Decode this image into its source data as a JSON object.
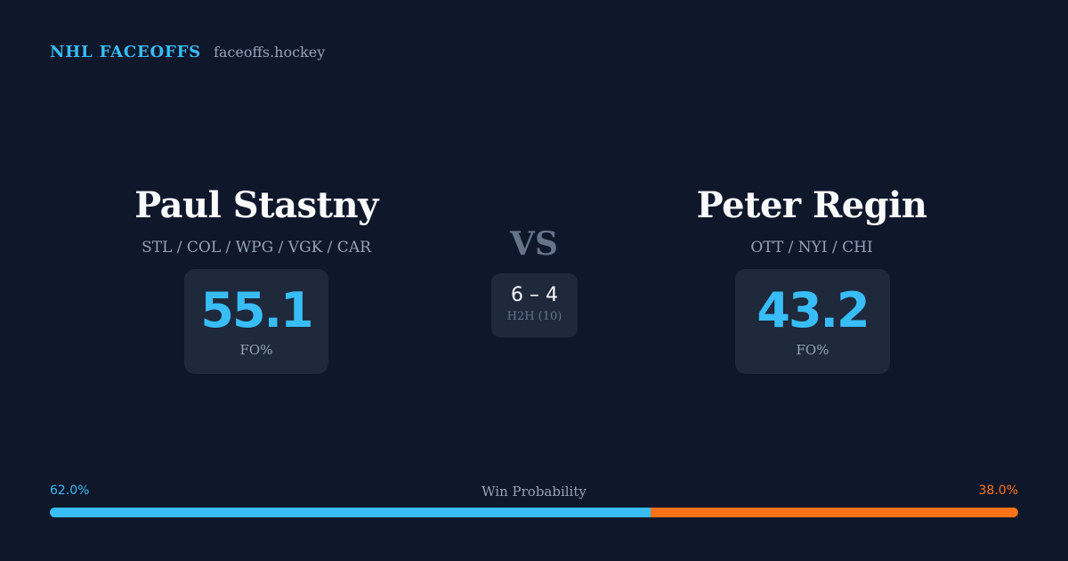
{
  "brand": {
    "title": "NHL FACEOFFS",
    "site": "faceoffs.hockey"
  },
  "players": {
    "left": {
      "name": "Paul Stastny",
      "teams": "STL / COL / WPG / VGK / CAR",
      "fo_pct": "55.1",
      "fo_label": "FO%"
    },
    "right": {
      "name": "Peter Regin",
      "teams": "OTT / NYI / CHI",
      "fo_pct": "43.2",
      "fo_label": "FO%"
    }
  },
  "matchup": {
    "vs": "VS",
    "h2h_score": "6 – 4",
    "h2h_label": "H2H (10)"
  },
  "win_probability": {
    "label": "Win Probability",
    "left_pct_text": "62.0%",
    "right_pct_text": "38.0%",
    "left_fraction": 0.62,
    "right_fraction": 0.38
  },
  "colors": {
    "background": "#0f172a",
    "card": "#1e293b",
    "accent_left": "#38bdf8",
    "accent_right": "#f97316",
    "muted": "#94a3b8"
  }
}
